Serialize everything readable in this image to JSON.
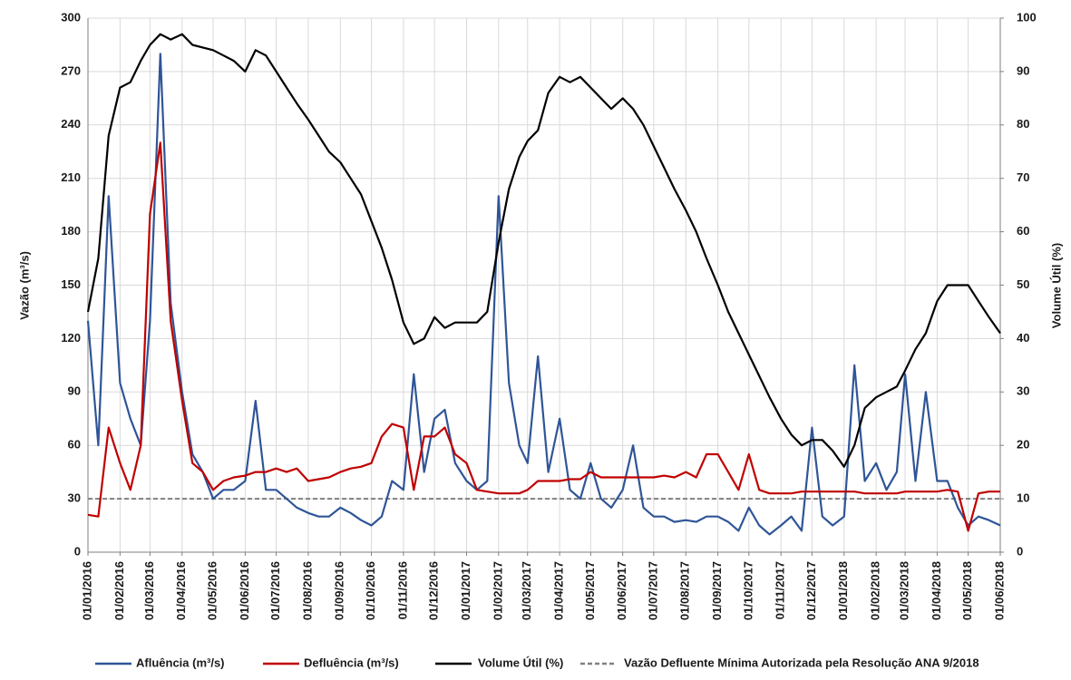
{
  "chart_data": {
    "type": "line",
    "y_label": "Vazão (m³/s)",
    "y2_label": "Volume Útil (%)",
    "x": [
      "01/01/2016",
      "11/01/2016",
      "21/01/2016",
      "01/02/2016",
      "11/02/2016",
      "21/02/2016",
      "01/03/2016",
      "11/03/2016",
      "21/03/2016",
      "01/04/2016",
      "11/04/2016",
      "21/04/2016",
      "01/05/2016",
      "11/05/2016",
      "21/05/2016",
      "01/06/2016",
      "11/06/2016",
      "21/06/2016",
      "01/07/2016",
      "11/07/2016",
      "21/07/2016",
      "01/08/2016",
      "11/08/2016",
      "21/08/2016",
      "01/09/2016",
      "11/09/2016",
      "21/09/2016",
      "01/10/2016",
      "11/10/2016",
      "21/10/2016",
      "01/11/2016",
      "11/11/2016",
      "21/11/2016",
      "01/12/2016",
      "11/12/2016",
      "21/12/2016",
      "01/01/2017",
      "11/01/2017",
      "21/01/2017",
      "01/02/2017",
      "11/02/2017",
      "21/02/2017",
      "01/03/2017",
      "11/03/2017",
      "21/03/2017",
      "01/04/2017",
      "11/04/2017",
      "21/04/2017",
      "01/05/2017",
      "11/05/2017",
      "21/05/2017",
      "01/06/2017",
      "11/06/2017",
      "21/06/2017",
      "01/07/2017",
      "11/07/2017",
      "21/07/2017",
      "01/08/2017",
      "11/08/2017",
      "21/08/2017",
      "01/09/2017",
      "11/09/2017",
      "21/09/2017",
      "01/10/2017",
      "11/10/2017",
      "21/10/2017",
      "01/11/2017",
      "11/11/2017",
      "21/11/2017",
      "01/12/2017",
      "11/12/2017",
      "21/12/2017",
      "01/01/2018",
      "11/01/2018",
      "21/01/2018",
      "01/02/2018",
      "11/02/2018",
      "21/02/2018",
      "01/03/2018",
      "11/03/2018",
      "21/03/2018",
      "01/04/2018",
      "11/04/2018",
      "21/04/2018",
      "01/05/2018",
      "11/05/2018",
      "21/05/2018",
      "01/06/2018"
    ],
    "xlim": [
      "01/01/2016",
      "01/06/2018"
    ],
    "xticks": [
      "01/01/2016",
      "01/02/2016",
      "01/03/2016",
      "01/04/2016",
      "01/05/2016",
      "01/06/2016",
      "01/07/2016",
      "01/08/2016",
      "01/09/2016",
      "01/10/2016",
      "01/11/2016",
      "01/12/2016",
      "01/01/2017",
      "01/02/2017",
      "01/03/2017",
      "01/04/2017",
      "01/05/2017",
      "01/06/2017",
      "01/07/2017",
      "01/08/2017",
      "01/09/2017",
      "01/10/2017",
      "01/11/2017",
      "01/12/2017",
      "01/01/2018",
      "01/02/2018",
      "01/03/2018",
      "01/04/2018",
      "01/05/2018",
      "01/06/2018"
    ],
    "ylim": [
      0,
      300
    ],
    "yticks": [
      0,
      30,
      60,
      90,
      120,
      150,
      180,
      210,
      240,
      270,
      300
    ],
    "y2lim": [
      0,
      100
    ],
    "y2ticks": [
      0,
      10,
      20,
      30,
      40,
      50,
      60,
      70,
      80,
      90,
      100
    ],
    "grid": true,
    "legend": "bottom",
    "series": [
      {
        "name": "Afluência (m³/s)",
        "color": "#2f5597",
        "values": [
          130,
          60,
          200,
          95,
          75,
          60,
          130,
          280,
          140,
          90,
          55,
          45,
          30,
          35,
          35,
          40,
          85,
          35,
          35,
          30,
          25,
          22,
          20,
          20,
          25,
          22,
          18,
          15,
          20,
          40,
          35,
          100,
          45,
          75,
          80,
          50,
          40,
          35,
          40,
          200,
          95,
          60,
          50,
          110,
          45,
          75,
          35,
          30,
          50,
          30,
          25,
          35,
          60,
          25,
          20,
          20,
          17,
          18,
          17,
          20,
          20,
          17,
          12,
          25,
          15,
          10,
          15,
          20,
          12,
          70,
          20,
          15,
          20,
          105,
          40,
          50,
          35,
          45,
          100,
          40,
          90,
          40,
          40,
          25,
          15,
          20,
          18,
          15
        ]
      },
      {
        "name": "Defluência (m³/s)",
        "color": "#c00000",
        "values": [
          21,
          20,
          70,
          50,
          35,
          60,
          190,
          230,
          130,
          85,
          50,
          45,
          35,
          40,
          42,
          43,
          45,
          45,
          47,
          45,
          47,
          40,
          41,
          42,
          45,
          47,
          48,
          50,
          65,
          72,
          70,
          35,
          65,
          65,
          70,
          55,
          50,
          35,
          34,
          33,
          33,
          33,
          35,
          40,
          40,
          40,
          41,
          41,
          45,
          42,
          42,
          42,
          42,
          42,
          42,
          43,
          42,
          45,
          42,
          55,
          55,
          45,
          35,
          55,
          35,
          33,
          33,
          33,
          34,
          34,
          34,
          34,
          34,
          34,
          33,
          33,
          33,
          33,
          34,
          34,
          34,
          34,
          35,
          34,
          12,
          33,
          34,
          34
        ]
      },
      {
        "name": "Volume Útil (%)",
        "color": "#000000",
        "axis": "y2",
        "values": [
          45,
          55,
          78,
          87,
          88,
          92,
          95,
          97,
          96,
          97,
          95,
          94.5,
          94,
          93,
          92,
          90,
          94,
          93,
          90,
          87,
          84,
          81,
          78,
          75,
          73,
          70,
          67,
          62,
          57,
          51,
          43,
          39,
          40,
          44,
          42,
          43,
          43,
          43,
          45,
          58,
          68,
          74,
          77,
          79,
          86,
          89,
          88,
          89,
          87,
          85,
          83,
          85,
          83,
          80,
          76,
          72,
          68,
          64,
          60,
          55,
          50,
          45,
          41,
          37,
          33,
          29,
          25,
          22,
          20,
          21,
          21,
          19,
          16,
          20,
          27,
          29,
          30,
          31,
          34,
          38,
          41,
          47,
          50,
          50,
          50,
          47,
          44,
          41
        ]
      }
    ],
    "reference_line": {
      "name": "Vazão Defluente Mínima Autorizada pela Resolução ANA 9/2018",
      "value": 30,
      "color": "#808080"
    }
  }
}
